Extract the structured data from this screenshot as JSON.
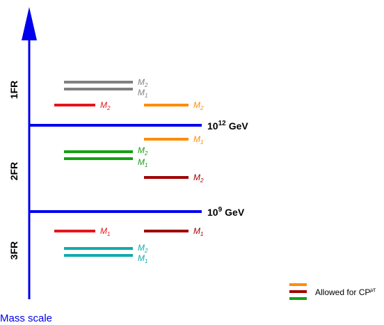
{
  "axis": {
    "caption": "Mass scale",
    "color": "#0000ee"
  },
  "thresholds": [
    {
      "exp": "12",
      "unit": "GeV",
      "base": "10"
    },
    {
      "exp": "9",
      "unit": "GeV",
      "base": "10"
    }
  ],
  "regions": [
    "1FR",
    "2FR",
    "3FR"
  ],
  "levels": {
    "fr1_gray_m2": {
      "letter": "M",
      "sub": "2",
      "color": "#808080"
    },
    "fr1_gray_m1": {
      "letter": "M",
      "sub": "1",
      "color": "#808080"
    },
    "fr1_red_m2": {
      "letter": "M",
      "sub": "2",
      "color": "#e8141c"
    },
    "fr1_orange_m2": {
      "letter": "M",
      "sub": "2",
      "color": "#ff8c00"
    },
    "fr2_orange_m1": {
      "letter": "M",
      "sub": "1",
      "color": "#ff8c00"
    },
    "fr2_green_m2": {
      "letter": "M",
      "sub": "2",
      "color": "#14a014"
    },
    "fr2_green_m1": {
      "letter": "M",
      "sub": "1",
      "color": "#14a014"
    },
    "fr2_darkred_m2": {
      "letter": "M",
      "sub": "2",
      "color": "#a00000"
    },
    "fr3_red_m1": {
      "letter": "M",
      "sub": "1",
      "color": "#e8141c"
    },
    "fr3_darkred_m1": {
      "letter": "M",
      "sub": "1",
      "color": "#a00000"
    },
    "fr3_teal_m2": {
      "letter": "M",
      "sub": "2",
      "color": "#14aaaa"
    },
    "fr3_teal_m1": {
      "letter": "M",
      "sub": "1",
      "color": "#14aaaa"
    }
  },
  "legend": {
    "text": "Allowed for CP",
    "sup": "μτ",
    "colors": [
      "#ff8c00",
      "#a00000",
      "#14a014"
    ]
  }
}
